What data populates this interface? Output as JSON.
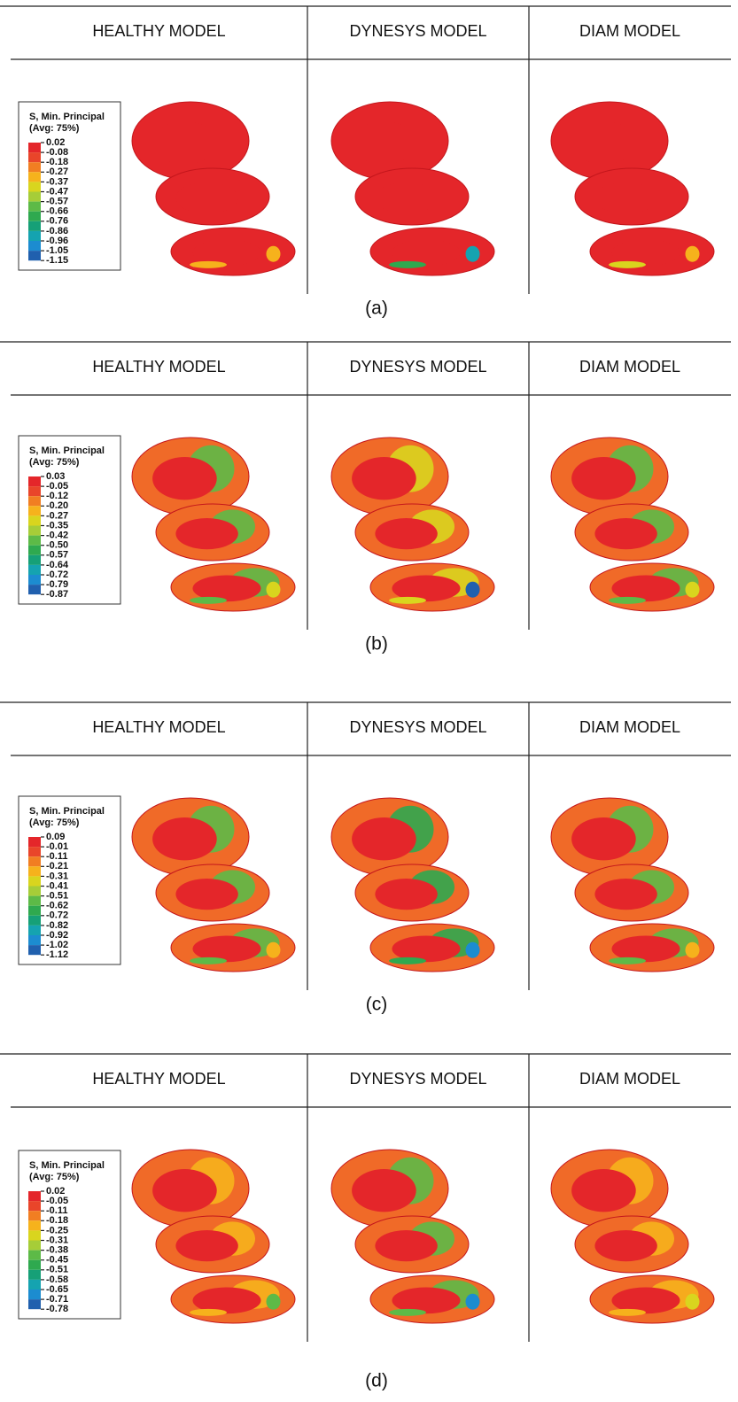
{
  "panels": [
    {
      "label": "(a)",
      "headers": [
        "HEALTHY MODEL",
        "DYNESYS MODEL",
        "DIAM MODEL"
      ],
      "legend": {
        "title": "S, Min. Principal",
        "subtitle": "(Avg: 75%)",
        "levels": [
          "0.02",
          "-0.08",
          "-0.18",
          "-0.27",
          "-0.37",
          "-0.47",
          "-0.57",
          "-0.66",
          "-0.76",
          "-0.86",
          "-0.96",
          "-1.05",
          "-1.15"
        ]
      }
    },
    {
      "label": "(b)",
      "headers": [
        "HEALTHY MODEL",
        "DYNESYS MODEL",
        "DIAM MODEL"
      ],
      "legend": {
        "title": "S, Min. Principal",
        "subtitle": "(Avg: 75%)",
        "levels": [
          "0.03",
          "-0.05",
          "-0.12",
          "-0.20",
          "-0.27",
          "-0.35",
          "-0.42",
          "-0.50",
          "-0.57",
          "-0.64",
          "-0.72",
          "-0.79",
          "-0.87"
        ]
      }
    },
    {
      "label": "(c)",
      "headers": [
        "HEALTHY MODEL",
        "DYNESYS MODEL",
        "DIAM MODEL"
      ],
      "legend": {
        "title": "S, Min. Principal",
        "subtitle": "(Avg: 75%)",
        "levels": [
          "0.09",
          "-0.01",
          "-0.11",
          "-0.21",
          "-0.31",
          "-0.41",
          "-0.51",
          "-0.62",
          "-0.72",
          "-0.82",
          "-0.92",
          "-1.02",
          "-1.12"
        ]
      }
    },
    {
      "label": "(d)",
      "headers": [
        "HEALTHY MODEL",
        "DYNESYS MODEL",
        "DIAM MODEL"
      ],
      "legend": {
        "title": "S, Min. Principal",
        "subtitle": "(Avg: 75%)",
        "levels": [
          "0.02",
          "-0.05",
          "-0.11",
          "-0.18",
          "-0.25",
          "-0.31",
          "-0.38",
          "-0.45",
          "-0.51",
          "-0.58",
          "-0.65",
          "-0.71",
          "-0.78"
        ]
      }
    }
  ]
}
